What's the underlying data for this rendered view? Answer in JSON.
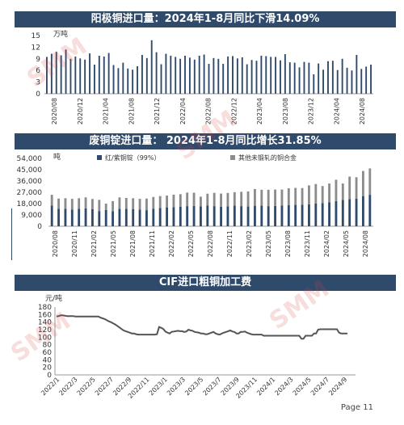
{
  "watermark": "SMM",
  "page_label": "Page 11",
  "chart_data": [
    {
      "type": "bar",
      "title": "阳极铜进口量：2024年1-8月同比下滑14.09%",
      "ylabel": "万吨",
      "ylim": [
        0,
        15
      ],
      "yticks": [
        0,
        3,
        6,
        9,
        12,
        15
      ],
      "tick_labels": [
        "2020/08",
        "2020/12",
        "2021/04",
        "2021/08",
        "2021/12",
        "2022/04",
        "2022/08",
        "2022/12",
        "2023/04",
        "2023/08",
        "2023/12",
        "2024/04",
        "2024/08"
      ],
      "color": "#2f4a6b",
      "values": [
        9.5,
        10.3,
        10.8,
        9.9,
        11.4,
        9.0,
        9.6,
        9.1,
        8.8,
        10.4,
        7.5,
        9.8,
        9.6,
        10.5,
        7.4,
        6.6,
        8.0,
        6.5,
        6.2,
        7.1,
        10.0,
        9.2,
        13.8,
        10.7,
        7.6,
        10.3,
        9.8,
        9.5,
        9.0,
        9.8,
        9.3,
        8.8,
        9.8,
        10.1,
        7.7,
        9.2,
        9.0,
        7.7,
        9.6,
        9.7,
        9.1,
        9.4,
        7.6,
        8.7,
        8.5,
        9.8,
        9.7,
        9.5,
        9.5,
        8.6,
        10.2,
        8.1,
        8.0,
        6.8,
        8.2,
        8.0,
        5.0,
        7.8,
        6.2,
        8.4,
        8.5,
        6.1,
        9.0,
        6.7,
        6.0,
        10.0,
        6.4,
        7.0,
        7.5
      ]
    },
    {
      "type": "bar",
      "stacked": true,
      "title": "废铜锭进口量： 2024年1-8月同比增长31.85%",
      "ylabel": "吨",
      "ylim": [
        0,
        54000
      ],
      "yticks": [
        0,
        9000,
        18000,
        27000,
        36000,
        45000,
        54000
      ],
      "ytick_labels": [
        "0",
        "9,000",
        "18,000",
        "27,000",
        "36,000",
        "45,000",
        "54,000"
      ],
      "tick_labels": [
        "2020/08",
        "2020/11",
        "2021/02",
        "2021/05",
        "2021/08",
        "2021/11",
        "2022/02",
        "2022/05",
        "2022/08",
        "2022/11",
        "2023/02",
        "2023/05",
        "2023/08",
        "2023/11",
        "2024/02",
        "2024/05",
        "2024/08"
      ],
      "legend_position": "top",
      "series": [
        {
          "name": "红/紫铜锭（99%）",
          "color": "#2f4a6b",
          "values": [
            16500,
            13800,
            14000,
            13200,
            13900,
            14200,
            13500,
            12100,
            13000,
            12000,
            13800,
            13900,
            13500,
            13200,
            12800,
            14000,
            14500,
            15000,
            15200,
            15500,
            16000,
            16200,
            15800,
            16400,
            16000,
            15500,
            15800,
            16500,
            16000,
            15700,
            16300,
            16500,
            16000,
            16200,
            16400,
            16800,
            17000,
            17200,
            17500,
            18000,
            18500,
            19000,
            20000,
            21000,
            21500,
            22000,
            24000,
            25000
          ]
        },
        {
          "name": "其他未锻轧的铜合金",
          "color": "#8c8c8c",
          "values": [
            8500,
            8200,
            8300,
            8600,
            8400,
            8800,
            8200,
            8900,
            5000,
            8000,
            9200,
            8600,
            8800,
            8600,
            9200,
            9300,
            9500,
            9400,
            9900,
            10000,
            10800,
            10500,
            7700,
            9500,
            10600,
            10500,
            10700,
            10600,
            11400,
            12000,
            13300,
            12500,
            13000,
            13000,
            12800,
            13400,
            13500,
            13200,
            15000,
            15600,
            13500,
            15000,
            17000,
            13000,
            18000,
            17000,
            20000,
            21000
          ]
        }
      ]
    },
    {
      "type": "line",
      "title": "CIF进口粗铜加工费",
      "ylabel": "元/吨",
      "ylim": [
        0,
        180
      ],
      "yticks": [
        0,
        20,
        40,
        60,
        80,
        100,
        120,
        140,
        160,
        180
      ],
      "tick_labels": [
        "2022/1",
        "2022/3",
        "2022/5",
        "2022/7",
        "2022/9",
        "2022/11",
        "2023/1",
        "2023/3",
        "2023/5",
        "2023/7",
        "2023/9",
        "2023/11",
        "2024/1",
        "2024/3",
        "2024/5",
        "2024/7",
        "2024/9"
      ],
      "color": "#555555",
      "x_start": "2022/1",
      "values": [
        155,
        156,
        158,
        158,
        157,
        156,
        156,
        156,
        156,
        155,
        155,
        155,
        155,
        155,
        155,
        155,
        155,
        155,
        155,
        155,
        155,
        152,
        150,
        148,
        145,
        142,
        140,
        137,
        134,
        130,
        126,
        122,
        118,
        116,
        114,
        112,
        110,
        110,
        108,
        107,
        107,
        107,
        107,
        107,
        107,
        107,
        107,
        107,
        108,
        127,
        125,
        122,
        115,
        112,
        110,
        114,
        115,
        116,
        117,
        116,
        116,
        114,
        115,
        120,
        118,
        117,
        114,
        113,
        112,
        110,
        110,
        108,
        108,
        110,
        112,
        114,
        110,
        108,
        107,
        110,
        112,
        114,
        116,
        118,
        115,
        114,
        110,
        110,
        114,
        114,
        115,
        112,
        110,
        108,
        107,
        107,
        107,
        107,
        107,
        104,
        104,
        104,
        104,
        104,
        104,
        104,
        104,
        104,
        104,
        104,
        104,
        104,
        104,
        104,
        104,
        104,
        104,
        96,
        96,
        104,
        104,
        104,
        104,
        110,
        110,
        120,
        121,
        121,
        121,
        121,
        121,
        121,
        121,
        121,
        121,
        112,
        110,
        110,
        110,
        110
      ]
    }
  ]
}
